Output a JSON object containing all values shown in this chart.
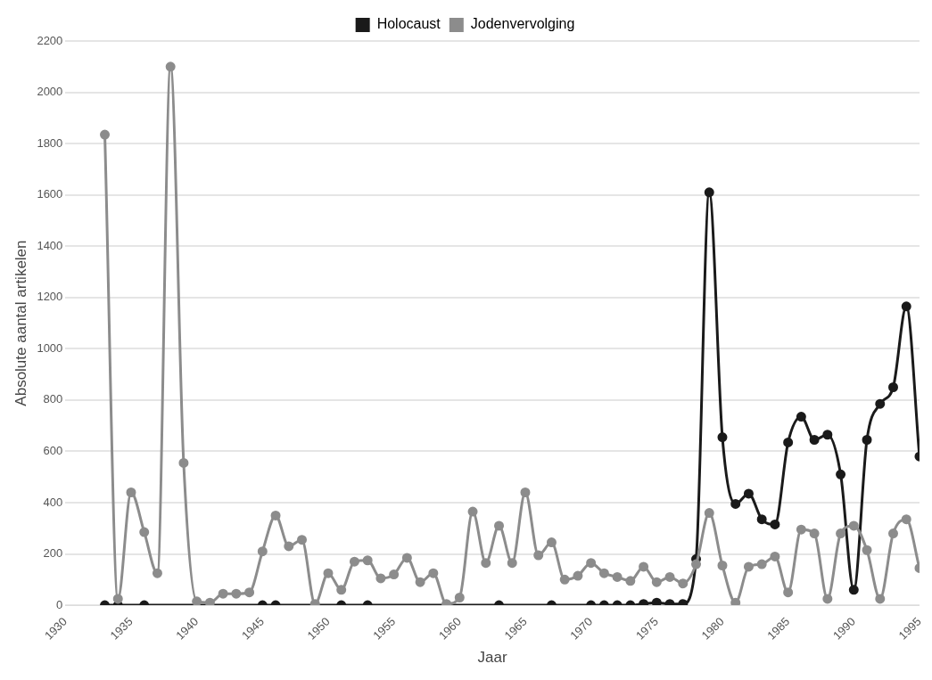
{
  "chart_data": {
    "type": "line",
    "xlabel": "Jaar",
    "ylabel": "Absolute aantal artikelen",
    "xlim": [
      1930,
      1995
    ],
    "xticks": [
      1930,
      1935,
      1940,
      1945,
      1950,
      1955,
      1960,
      1965,
      1970,
      1975,
      1980,
      1985,
      1990,
      1995
    ],
    "ylim": [
      0,
      2200
    ],
    "yticks": [
      0,
      200,
      400,
      600,
      800,
      1000,
      1200,
      1400,
      1600,
      1800,
      2000,
      2200
    ],
    "grid": "y",
    "legend": "top",
    "marker": "circle",
    "line_style": "solid",
    "series": [
      {
        "name": "Holocaust",
        "color": "#1a1a1a",
        "x": [
          1933,
          1934,
          1936,
          1945,
          1946,
          1951,
          1953,
          1963,
          1967,
          1970,
          1971,
          1972,
          1973,
          1974,
          1975,
          1976,
          1977,
          1978,
          1979,
          1980,
          1981,
          1982,
          1983,
          1984,
          1985,
          1986,
          1987,
          1988,
          1989,
          1990,
          1991,
          1992,
          1993,
          1994,
          1995
        ],
        "values": [
          0,
          0,
          0,
          0,
          0,
          0,
          0,
          0,
          0,
          0,
          0,
          0,
          0,
          5,
          10,
          5,
          5,
          180,
          1610,
          655,
          395,
          435,
          335,
          315,
          635,
          735,
          645,
          665,
          510,
          60,
          645,
          785,
          850,
          1165,
          580
        ]
      },
      {
        "name": "Jodenvervolging",
        "color": "#8c8c8c",
        "x": [
          1933,
          1934,
          1935,
          1936,
          1937,
          1938,
          1939,
          1940,
          1941,
          1942,
          1943,
          1944,
          1945,
          1946,
          1947,
          1948,
          1949,
          1950,
          1951,
          1952,
          1953,
          1954,
          1955,
          1956,
          1957,
          1958,
          1959,
          1960,
          1961,
          1962,
          1963,
          1964,
          1965,
          1966,
          1967,
          1968,
          1969,
          1970,
          1971,
          1972,
          1973,
          1974,
          1975,
          1976,
          1977,
          1978,
          1979,
          1980,
          1981,
          1982,
          1983,
          1984,
          1985,
          1986,
          1987,
          1988,
          1989,
          1990,
          1991,
          1992,
          1993,
          1994,
          1995
        ],
        "values": [
          1835,
          25,
          440,
          285,
          125,
          2100,
          555,
          15,
          10,
          45,
          45,
          50,
          210,
          350,
          230,
          255,
          5,
          125,
          60,
          170,
          175,
          105,
          120,
          185,
          90,
          125,
          5,
          30,
          365,
          165,
          310,
          165,
          440,
          195,
          245,
          100,
          115,
          165,
          125,
          110,
          95,
          150,
          90,
          110,
          85,
          160,
          360,
          155,
          10,
          150,
          160,
          190,
          50,
          295,
          280,
          25,
          280,
          310,
          215,
          25,
          280,
          335,
          145
        ]
      }
    ]
  }
}
